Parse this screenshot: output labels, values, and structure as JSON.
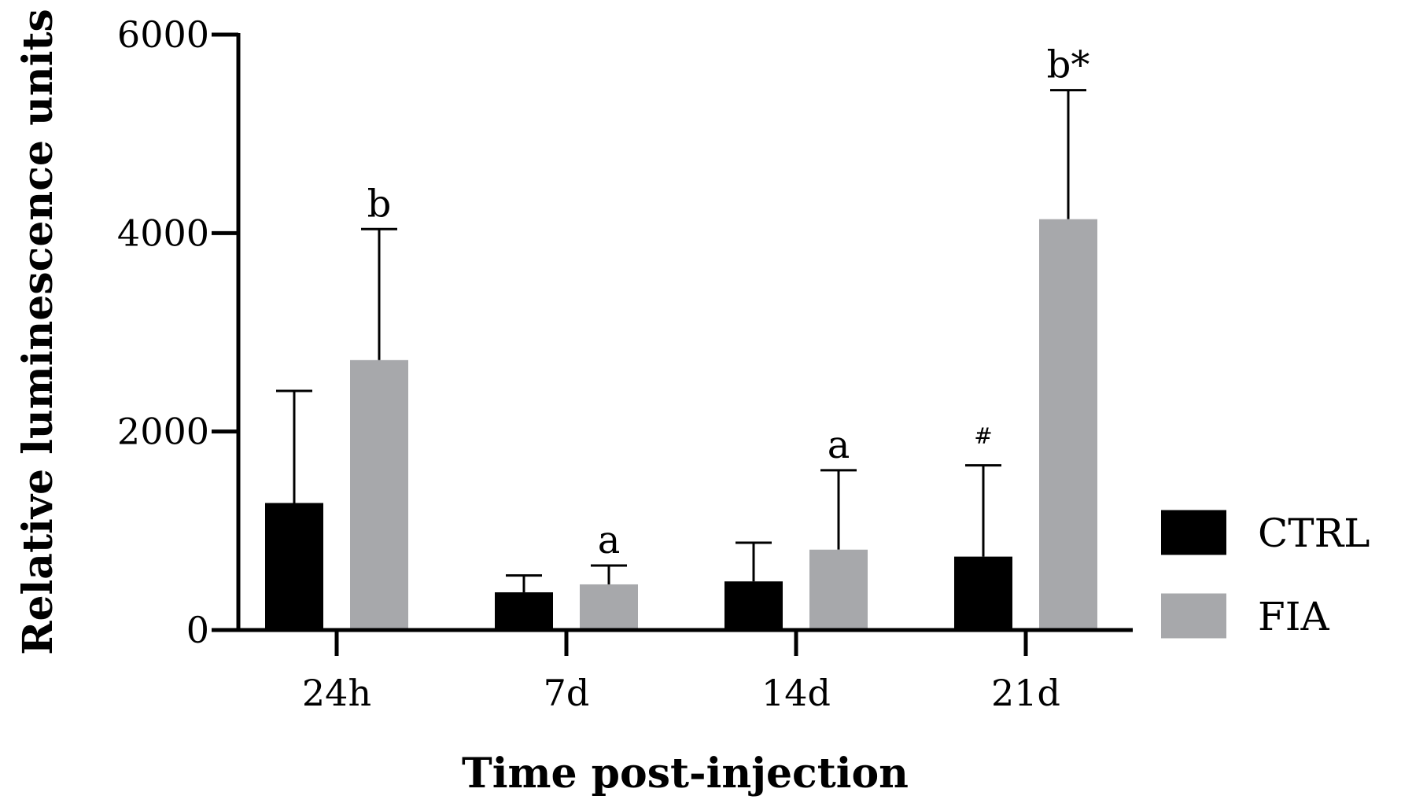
{
  "chart_data": {
    "type": "bar",
    "title": "",
    "xlabel": "Time post-injection",
    "ylabel": "Relative luminescence units",
    "categories": [
      "24h",
      "7d",
      "14d",
      "21d"
    ],
    "ylim": [
      0,
      6000
    ],
    "yticks": [
      0,
      2000,
      4000,
      6000
    ],
    "legend_position": "right",
    "series": [
      {
        "name": "CTRL",
        "color": "#000000",
        "values": [
          1280,
          380,
          490,
          740
        ],
        "errors": [
          1130,
          170,
          390,
          920
        ],
        "annotations": [
          "",
          "",
          "",
          "#"
        ]
      },
      {
        "name": "FIA",
        "color": "#a7a8ab",
        "values": [
          2720,
          460,
          810,
          4140
        ],
        "errors": [
          1320,
          190,
          800,
          1300
        ],
        "annotations": [
          "b",
          "a",
          "a",
          "b*"
        ]
      }
    ]
  }
}
